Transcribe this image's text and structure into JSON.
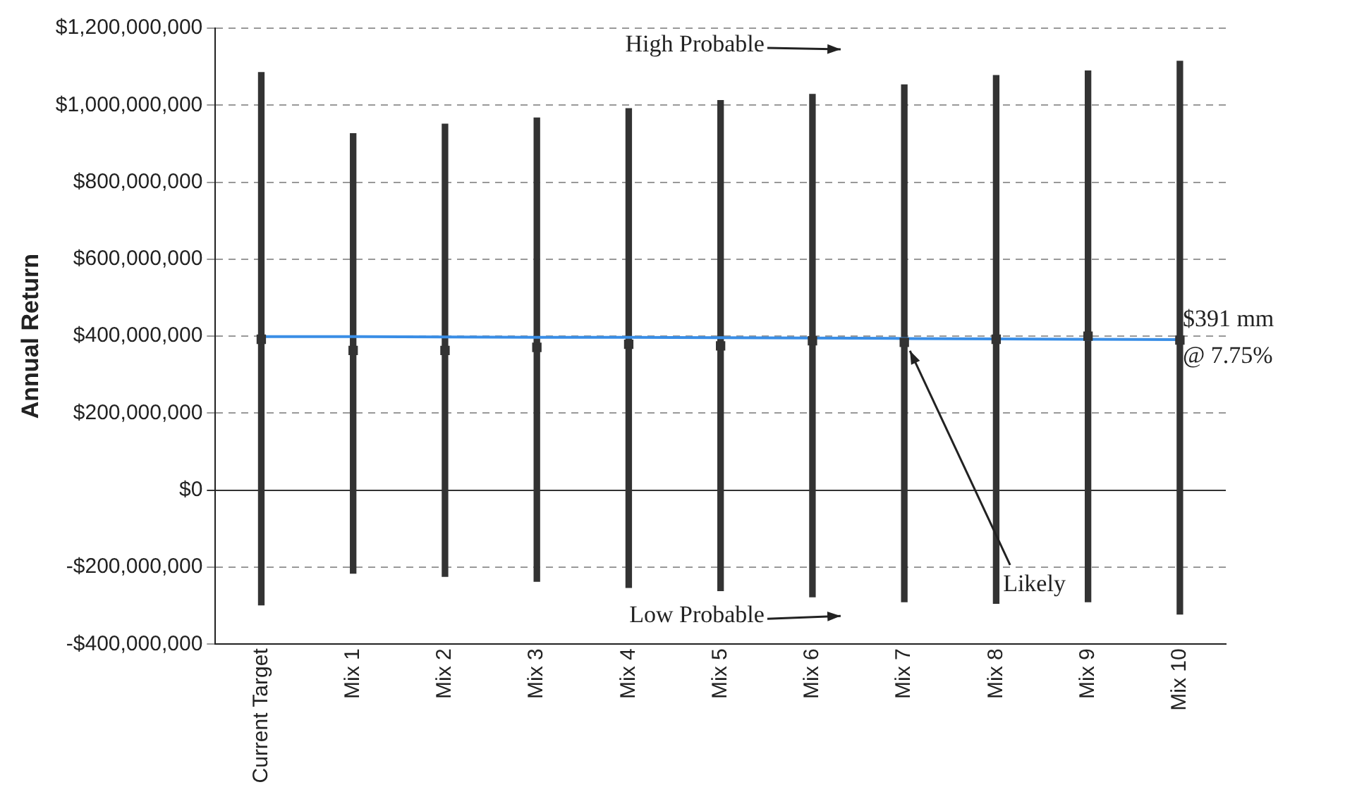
{
  "chart_data": {
    "type": "bar",
    "ylabel": "Annual Return",
    "categories": [
      "Current Target",
      "Mix 1",
      "Mix 2",
      "Mix 3",
      "Mix 4",
      "Mix 5",
      "Mix 6",
      "Mix 7",
      "Mix 8",
      "Mix 9",
      "Mix 10"
    ],
    "series": [
      {
        "color": "#333333",
        "base": [
          -298000000,
          -216000000,
          -224000000,
          -237000000,
          -253000000,
          -261000000,
          -277000000,
          -290000000,
          -294000000,
          -290000000,
          -322000000
        ],
        "values": [
          1383000000,
          1142000000,
          1175000000,
          1204000000,
          1244000000,
          1273000000,
          1305000000,
          1343000000,
          1371000000,
          1379000000,
          1436000000
        ]
      },
      {
        "type": "scatter",
        "color": "#333333",
        "marker": "square",
        "values": [
          392000000,
          363000000,
          363000000,
          371000000,
          379000000,
          375000000,
          388000000,
          384000000,
          392000000,
          400000000,
          390000000
        ]
      },
      {
        "type": "line",
        "color": "#3a8ee6",
        "values": [
          399000000,
          399000000,
          398000000,
          397000000,
          397000000,
          396000000,
          395000000,
          394000000,
          393000000,
          392000000,
          391000000
        ]
      }
    ],
    "ylim": [
      -400000000,
      1200000000
    ],
    "yticks": [
      {
        "value": -400000000,
        "label": "-$400,000,000"
      },
      {
        "value": -200000000,
        "label": "-$200,000,000"
      },
      {
        "value": 0,
        "label": "$0"
      },
      {
        "value": 200000000,
        "label": "$200,000,000"
      },
      {
        "value": 400000000,
        "label": "$400,000,000"
      },
      {
        "value": 600000000,
        "label": "$600,000,000"
      },
      {
        "value": 800000000,
        "label": "$800,000,000"
      },
      {
        "value": 1000000000,
        "label": "$1,000,000,000"
      },
      {
        "value": 1200000000,
        "label": "$1,200,000,000"
      }
    ],
    "grid": "y",
    "legend": false,
    "annotations": [
      "High Probable",
      "Low Probable",
      {
        "text": "Likely",
        "x": "Mix 7",
        "y": 384000000
      },
      {
        "text": "$391 mm\n@ 7.75%",
        "x": "Mix 10",
        "y": 391000000
      }
    ]
  }
}
